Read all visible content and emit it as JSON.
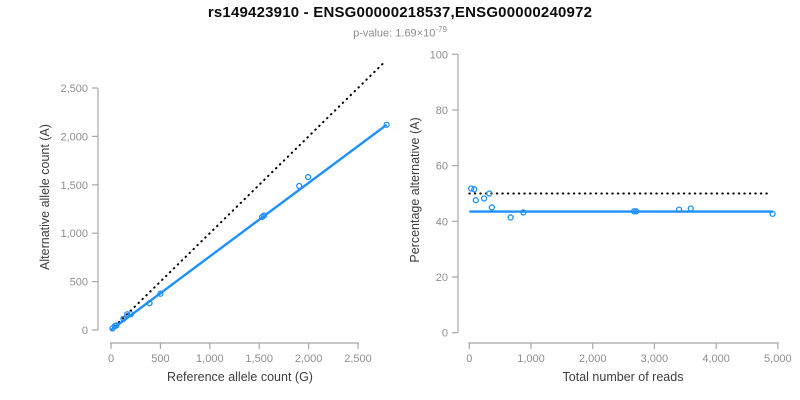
{
  "header": {
    "title": "rs149423910 - ENSG00000218537,ENSG00000240972",
    "pvalue_text": "p-value: 1.69×10",
    "pvalue_exponent": "-79"
  },
  "colors": {
    "accent_blue": "#1E90FF",
    "identity_black": "#000000",
    "axis_gray": "#A8A8A8",
    "tick_label_gray": "#8E8E8E",
    "axis_title_gray": "#3D3D3D"
  },
  "chart_data": [
    {
      "id": "allele-count-scatter",
      "type": "scatter",
      "xlabel": "Reference allele count (G)",
      "ylabel": "Alternative allele count (A)",
      "xlim": [
        0,
        2800
      ],
      "ylim": [
        0,
        2800
      ],
      "xticks": [
        0,
        500,
        1000,
        1500,
        2000,
        2500
      ],
      "xtick_labels": [
        "0",
        "500",
        "1,000",
        "1,500",
        "2,000",
        "2,500"
      ],
      "yticks": [
        0,
        500,
        1000,
        1500,
        2000,
        2500
      ],
      "ytick_labels": [
        "0",
        "500",
        "1,000",
        "1,500",
        "2,000",
        "2,500"
      ],
      "grid": false,
      "points": [
        [
          15,
          16
        ],
        [
          40,
          41
        ],
        [
          55,
          48
        ],
        [
          125,
          115
        ],
        [
          163,
          162
        ],
        [
          201,
          164
        ],
        [
          390,
          278
        ],
        [
          500,
          375
        ],
        [
          1530,
          1168
        ],
        [
          1548,
          1182
        ],
        [
          1905,
          1488
        ],
        [
          1995,
          1580
        ],
        [
          2790,
          2120
        ]
      ],
      "lines": [
        {
          "name": "identity-line",
          "style": "dotted",
          "color": "black",
          "x1": 0,
          "y1": 0,
          "x2": 2760,
          "y2": 2760
        },
        {
          "name": "fit-line",
          "style": "solid",
          "color": "accent",
          "x1": 0,
          "y1": 0,
          "x2": 2790,
          "y2": 2120
        }
      ]
    },
    {
      "id": "percentage-scatter",
      "type": "scatter",
      "xlabel": "Total number of reads",
      "ylabel": "Percentage alternative (A)",
      "xlim": [
        0,
        5100
      ],
      "ylim": [
        0,
        100
      ],
      "xticks": [
        0,
        1000,
        2000,
        3000,
        4000,
        5000
      ],
      "xtick_labels": [
        "0",
        "1,000",
        "2,000",
        "3,000",
        "4,000",
        "5,000"
      ],
      "yticks": [
        0,
        20,
        40,
        60,
        80,
        100
      ],
      "ytick_labels": [
        "0",
        "20",
        "40",
        "60",
        "80",
        "100"
      ],
      "grid": false,
      "points": [
        [
          30,
          51.8
        ],
        [
          80,
          51.5
        ],
        [
          105,
          47.6
        ],
        [
          240,
          48.2
        ],
        [
          325,
          50.0
        ],
        [
          365,
          45.0
        ],
        [
          670,
          41.4
        ],
        [
          875,
          43.2
        ],
        [
          2670,
          43.6
        ],
        [
          2705,
          43.6
        ],
        [
          3400,
          44.2
        ],
        [
          3590,
          44.6
        ],
        [
          4915,
          42.7
        ]
      ],
      "lines": [
        {
          "name": "null-expectation-line",
          "style": "dotted",
          "color": "black",
          "x1": 0,
          "y1": 50,
          "x2": 4900,
          "y2": 50
        },
        {
          "name": "fit-line",
          "style": "solid",
          "color": "accent",
          "x1": 0,
          "y1": 43.5,
          "x2": 4920,
          "y2": 43.5
        }
      ]
    }
  ]
}
